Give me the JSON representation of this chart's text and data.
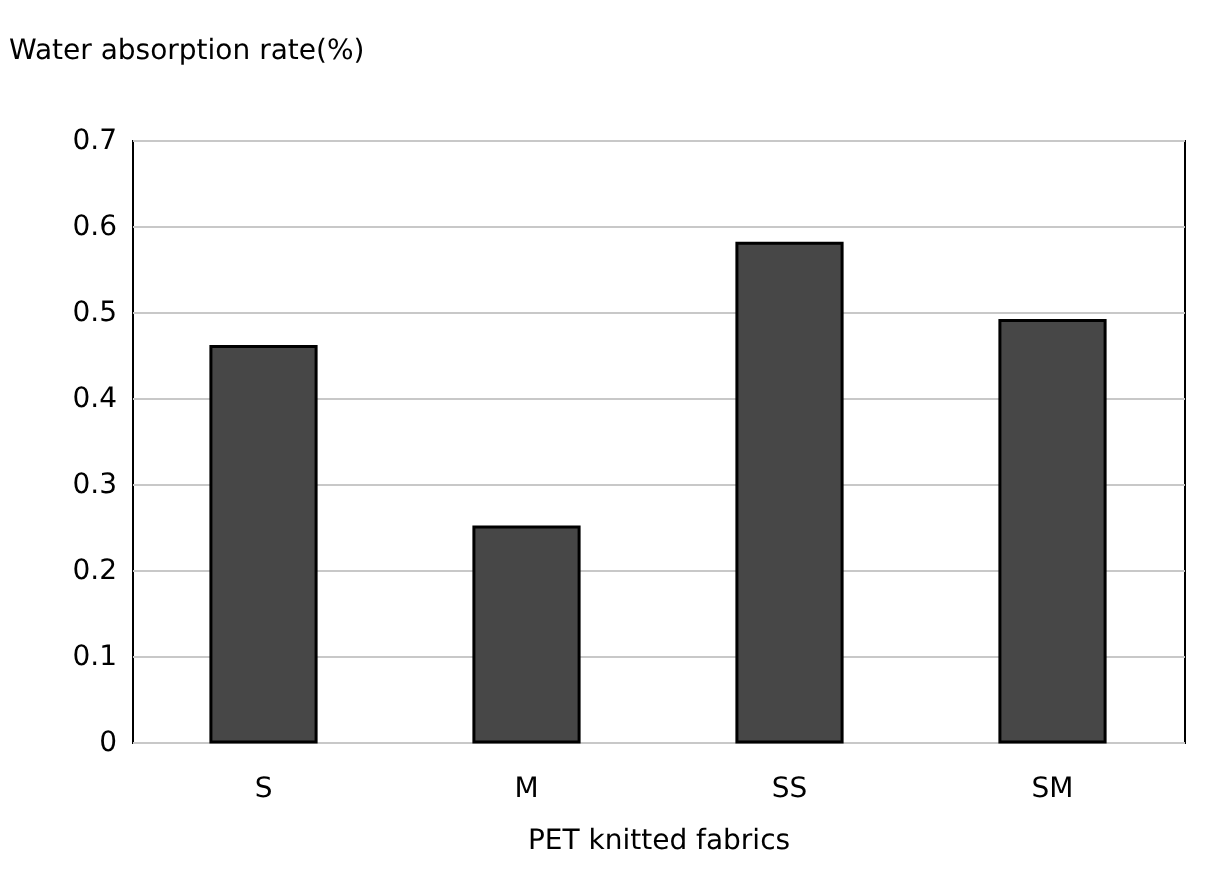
{
  "chart_data": {
    "type": "bar",
    "xlabel": "PET knitted fabrics",
    "ylabel": "Water absorption rate(%)",
    "categories": [
      "S",
      "M",
      "SS",
      "SM"
    ],
    "values": [
      0.46,
      0.25,
      0.58,
      0.49
    ],
    "color": "#474747",
    "ylim": [
      0,
      0.7
    ],
    "yticks": [
      {
        "value": 0,
        "label": "0"
      },
      0.1,
      0.2,
      0.3,
      0.4,
      0.5,
      0.6,
      0.7
    ],
    "grid": "y"
  }
}
